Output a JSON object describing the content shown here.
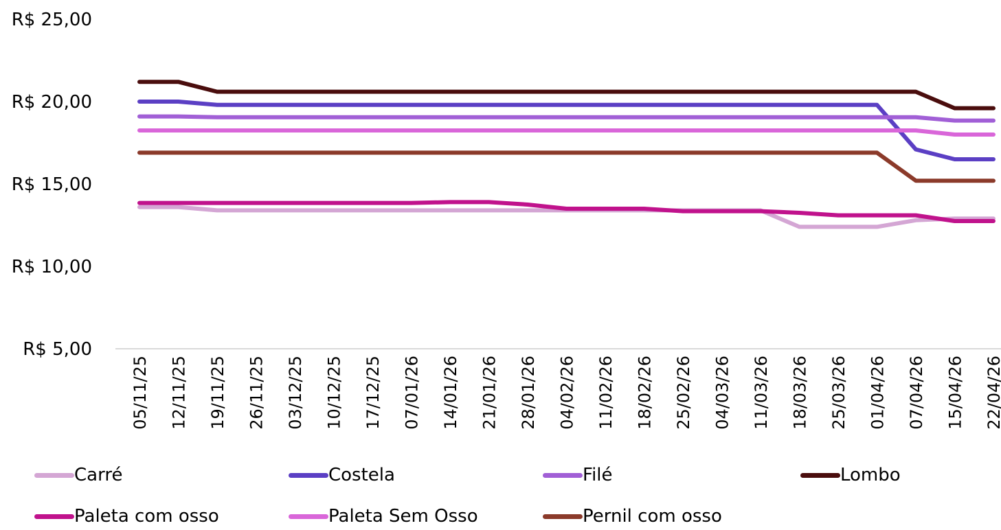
{
  "chart_data": {
    "type": "line",
    "title": "",
    "xlabel": "",
    "ylabel": "",
    "ylim": [
      5,
      25
    ],
    "y_ticks": [
      "R$ 5,00",
      "R$ 10,00",
      "R$ 15,00",
      "R$ 20,00",
      "R$ 25,00"
    ],
    "y_tick_values": [
      5,
      10,
      15,
      20,
      25
    ],
    "grid": false,
    "legend_position": "bottom",
    "x": [
      "05/11/25",
      "12/11/25",
      "19/11/25",
      "26/11/25",
      "03/12/25",
      "10/12/25",
      "17/12/25",
      "07/01/26",
      "14/01/26",
      "21/01/26",
      "28/01/26",
      "04/02/26",
      "11/02/26",
      "18/02/26",
      "25/02/26",
      "04/03/26",
      "11/03/26",
      "18/03/26",
      "25/03/26",
      "01/04/26",
      "07/04/26",
      "15/04/26",
      "22/04/26"
    ],
    "series": [
      {
        "name": "Carré",
        "color": "#d4a6d4",
        "values": [
          13.6,
          13.6,
          13.4,
          13.4,
          13.4,
          13.4,
          13.4,
          13.4,
          13.4,
          13.4,
          13.4,
          13.4,
          13.4,
          13.4,
          13.4,
          13.4,
          13.4,
          12.4,
          12.4,
          12.4,
          12.8,
          12.9,
          12.9
        ]
      },
      {
        "name": "Costela",
        "color": "#5b3fc4",
        "values": [
          20.0,
          20.0,
          19.8,
          19.8,
          19.8,
          19.8,
          19.8,
          19.8,
          19.8,
          19.8,
          19.8,
          19.8,
          19.8,
          19.8,
          19.8,
          19.8,
          19.8,
          19.8,
          19.8,
          19.8,
          17.1,
          16.5,
          16.5
        ]
      },
      {
        "name": "Filé",
        "color": "#a15fd6",
        "values": [
          19.1,
          19.1,
          19.05,
          19.05,
          19.05,
          19.05,
          19.05,
          19.05,
          19.05,
          19.05,
          19.05,
          19.05,
          19.05,
          19.05,
          19.05,
          19.05,
          19.05,
          19.05,
          19.05,
          19.05,
          19.05,
          18.85,
          18.85
        ]
      },
      {
        "name": "Lombo",
        "color": "#4a0d0d",
        "values": [
          21.2,
          21.2,
          20.6,
          20.6,
          20.6,
          20.6,
          20.6,
          20.6,
          20.6,
          20.6,
          20.6,
          20.6,
          20.6,
          20.6,
          20.6,
          20.6,
          20.6,
          20.6,
          20.6,
          20.6,
          20.6,
          19.6,
          19.6
        ]
      },
      {
        "name": "Paleta com osso",
        "color": "#c0128c",
        "values": [
          13.85,
          13.85,
          13.85,
          13.85,
          13.85,
          13.85,
          13.85,
          13.85,
          13.9,
          13.9,
          13.75,
          13.5,
          13.5,
          13.5,
          13.35,
          13.35,
          13.35,
          13.25,
          13.1,
          13.1,
          13.1,
          12.75,
          12.75
        ]
      },
      {
        "name": "Paleta Sem Osso",
        "color": "#d966d9",
        "values": [
          18.25,
          18.25,
          18.25,
          18.25,
          18.25,
          18.25,
          18.25,
          18.25,
          18.25,
          18.25,
          18.25,
          18.25,
          18.25,
          18.25,
          18.25,
          18.25,
          18.25,
          18.25,
          18.25,
          18.25,
          18.25,
          18.0,
          18.0
        ]
      },
      {
        "name": "Pernil com osso",
        "color": "#8b3a2a",
        "values": [
          16.9,
          16.9,
          16.9,
          16.9,
          16.9,
          16.9,
          16.9,
          16.9,
          16.9,
          16.9,
          16.9,
          16.9,
          16.9,
          16.9,
          16.9,
          16.9,
          16.9,
          16.9,
          16.9,
          16.9,
          15.2,
          15.2,
          15.2
        ]
      }
    ]
  }
}
